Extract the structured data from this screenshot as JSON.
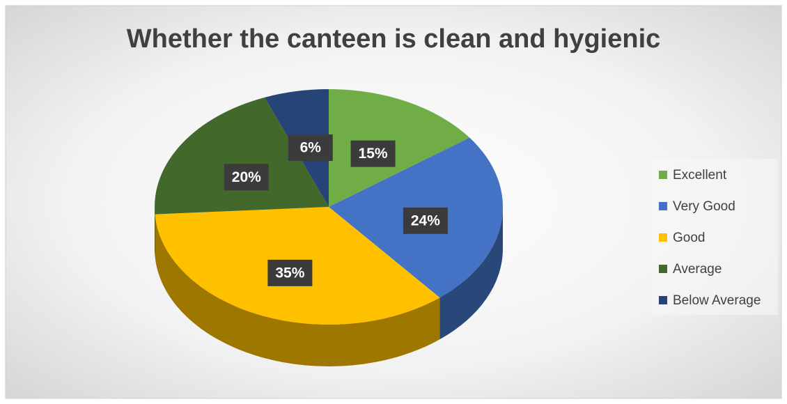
{
  "chart_data": {
    "type": "pie",
    "title": "Whether the canteen is clean and hygienic",
    "categories": [
      "Excellent",
      "Very Good",
      "Good",
      "Average",
      "Below Average"
    ],
    "values": [
      15,
      24,
      35,
      20,
      6
    ],
    "value_labels": [
      "15%",
      "24%",
      "35%",
      "20%",
      "6%"
    ],
    "colors": [
      "#70ad47",
      "#4472c4",
      "#ffc000",
      "#43682b",
      "#264478"
    ],
    "legend": "right"
  }
}
